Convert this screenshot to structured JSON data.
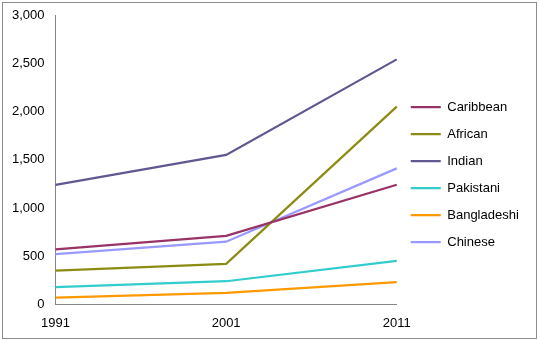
{
  "chart_data": {
    "type": "line",
    "categories": [
      "1991",
      "2001",
      "2011"
    ],
    "series": [
      {
        "name": "Caribbean",
        "color": "#993366",
        "values": [
          570,
          710,
          1240
        ]
      },
      {
        "name": "African",
        "color": "#8c8c14",
        "values": [
          350,
          420,
          2050
        ]
      },
      {
        "name": "Indian",
        "color": "#605890",
        "values": [
          1240,
          1550,
          2540
        ]
      },
      {
        "name": "Pakistani",
        "color": "#33cccc",
        "values": [
          180,
          240,
          450
        ]
      },
      {
        "name": "Bangladeshi",
        "color": "#ff9900",
        "values": [
          70,
          120,
          230
        ]
      },
      {
        "name": "Chinese",
        "color": "#9999ff",
        "values": [
          520,
          650,
          1410
        ]
      }
    ],
    "ylim": [
      0,
      3000
    ],
    "yticks": [
      0,
      500,
      {
        "value": 1000,
        "label": "1,000"
      },
      {
        "value": 1500,
        "label": "1,500"
      },
      {
        "value": 2000,
        "label": "2,000"
      },
      {
        "value": 2500,
        "label": "2,500"
      },
      {
        "value": 3000,
        "label": "3,000"
      }
    ],
    "grid": false,
    "legend": "right"
  }
}
